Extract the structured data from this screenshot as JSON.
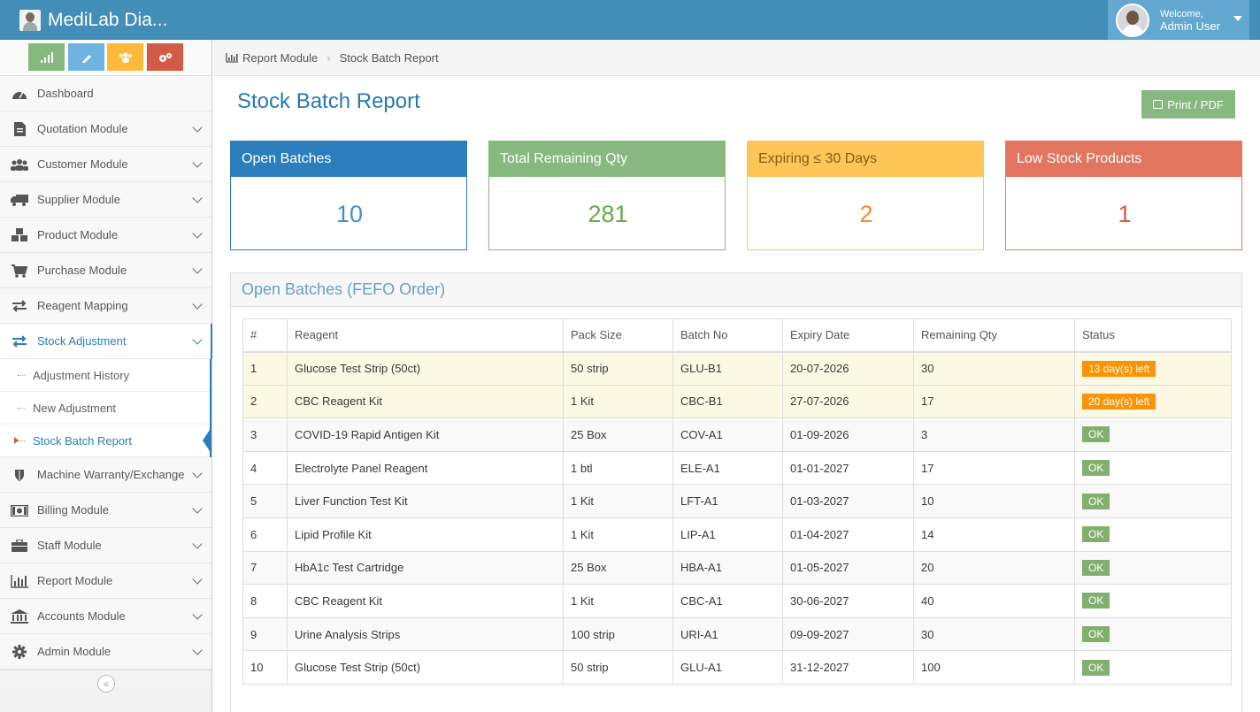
{
  "app": {
    "brand": "MediLab Dia...",
    "user": {
      "welcome": "Welcome,",
      "name": "Admin User"
    }
  },
  "shortcuts": [
    {
      "name": "bar-chart-icon",
      "color": "#87b87f"
    },
    {
      "name": "pencil-icon",
      "color": "#6fb3e0"
    },
    {
      "name": "users-icon",
      "color": "#fbbb39"
    },
    {
      "name": "cogs-icon",
      "color": "#d15b47"
    }
  ],
  "sidebar": {
    "items": [
      {
        "label": "Dashboard",
        "icon": "tachometer-icon"
      },
      {
        "label": "Quotation Module",
        "icon": "file-icon"
      },
      {
        "label": "Customer Module",
        "icon": "users-icon"
      },
      {
        "label": "Supplier Module",
        "icon": "truck-icon"
      },
      {
        "label": "Product Module",
        "icon": "cubes-icon"
      },
      {
        "label": "Purchase Module",
        "icon": "cart-icon"
      },
      {
        "label": "Reagent Mapping",
        "icon": "exchange-icon"
      },
      {
        "label": "Stock Adjustment",
        "icon": "exchange-icon"
      },
      {
        "label": "Machine Warranty/Exchange",
        "icon": "shield-icon"
      },
      {
        "label": "Billing Module",
        "icon": "money-icon"
      },
      {
        "label": "Staff Module",
        "icon": "briefcase-icon"
      },
      {
        "label": "Report Module",
        "icon": "bar-chart-icon"
      },
      {
        "label": "Accounts Module",
        "icon": "bank-icon"
      },
      {
        "label": "Admin Module",
        "icon": "gear-icon"
      }
    ],
    "sub_items": [
      "Adjustment History",
      "New Adjustment",
      "Stock Batch Report"
    ],
    "collapse_glyph": "«"
  },
  "breadcrumb": {
    "parent": "Report Module",
    "current": "Stock Batch Report"
  },
  "page": {
    "title": "Stock Batch Report",
    "print_label": "Print / PDF"
  },
  "cards": [
    {
      "title": "Open Batches",
      "value": "10",
      "color": "#2b7dbc",
      "value_color": "#478fca"
    },
    {
      "title": "Total Remaining Qty",
      "value": "281",
      "color": "#87b87f",
      "value_color": "#69aa46"
    },
    {
      "title": "Expiring ≤ 30 Days",
      "value": "2",
      "color": "#ffc657",
      "value_color": "#ff892a"
    },
    {
      "title": "Low Stock Products",
      "value": "1",
      "color": "#e2755f",
      "value_color": "#dd5a43"
    }
  ],
  "table": {
    "title": "Open Batches (FEFO Order)",
    "columns": [
      "#",
      "Reagent",
      "Pack Size",
      "Batch No",
      "Expiry Date",
      "Remaining Qty",
      "Status"
    ],
    "rows": [
      {
        "no": "1",
        "reagent": "Glucose Test Strip (50ct)",
        "pack": "50 strip",
        "batch": "GLU-B1",
        "expiry": "20-07-2026",
        "qty": "30",
        "status": "13 day(s) left",
        "kind": "warn"
      },
      {
        "no": "2",
        "reagent": "CBC Reagent Kit",
        "pack": "1 Kit",
        "batch": "CBC-B1",
        "expiry": "27-07-2026",
        "qty": "17",
        "status": "20 day(s) left",
        "kind": "warn"
      },
      {
        "no": "3",
        "reagent": "COVID-19 Rapid Antigen Kit",
        "pack": "25 Box",
        "batch": "COV-A1",
        "expiry": "01-09-2026",
        "qty": "3",
        "status": "OK",
        "kind": "ok"
      },
      {
        "no": "4",
        "reagent": "Electrolyte Panel Reagent",
        "pack": "1 btl",
        "batch": "ELE-A1",
        "expiry": "01-01-2027",
        "qty": "17",
        "status": "OK",
        "kind": "ok"
      },
      {
        "no": "5",
        "reagent": "Liver Function Test Kit",
        "pack": "1 Kit",
        "batch": "LFT-A1",
        "expiry": "01-03-2027",
        "qty": "10",
        "status": "OK",
        "kind": "ok"
      },
      {
        "no": "6",
        "reagent": "Lipid Profile Kit",
        "pack": "1 Kit",
        "batch": "LIP-A1",
        "expiry": "01-04-2027",
        "qty": "14",
        "status": "OK",
        "kind": "ok"
      },
      {
        "no": "7",
        "reagent": "HbA1c Test Cartridge",
        "pack": "25 Box",
        "batch": "HBA-A1",
        "expiry": "01-05-2027",
        "qty": "20",
        "status": "OK",
        "kind": "ok"
      },
      {
        "no": "8",
        "reagent": "CBC Reagent Kit",
        "pack": "1 Kit",
        "batch": "CBC-A1",
        "expiry": "30-06-2027",
        "qty": "40",
        "status": "OK",
        "kind": "ok"
      },
      {
        "no": "9",
        "reagent": "Urine Analysis Strips",
        "pack": "100 strip",
        "batch": "URI-A1",
        "expiry": "09-09-2027",
        "qty": "30",
        "status": "OK",
        "kind": "ok"
      },
      {
        "no": "10",
        "reagent": "Glucose Test Strip (50ct)",
        "pack": "50 strip",
        "batch": "GLU-A1",
        "expiry": "31-12-2027",
        "qty": "100",
        "status": "OK",
        "kind": "ok"
      }
    ]
  }
}
